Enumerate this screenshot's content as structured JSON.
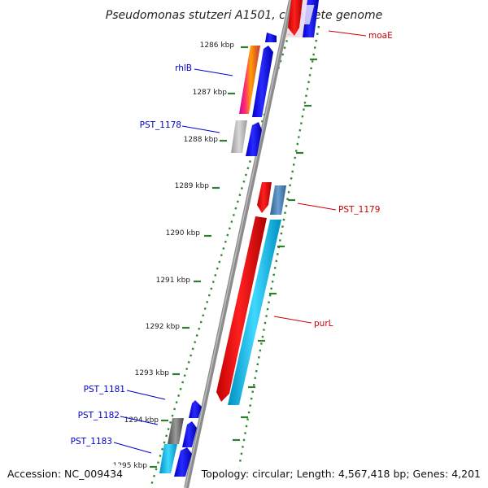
{
  "title": "Pseudomonas stutzeri A1501, complete genome",
  "footer": {
    "accession": "Accession: NC_009434",
    "topology": "Topology: circular; Length: 4,567,418 bp; Genes: 4,201"
  },
  "ticks": [
    "1286 kbp",
    "1287 kbp",
    "1288 kbp",
    "1289 kbp",
    "1290 kbp",
    "1291 kbp",
    "1292 kbp",
    "1293 kbp",
    "1294 kbp",
    "1295 kbp"
  ],
  "genes": {
    "moaE": "moaE",
    "rhlB": "rhlB",
    "pst1178": "PST_1178",
    "pst1179": "PST_1179",
    "purL": "purL",
    "pst1181": "PST_1181",
    "pst1182": "PST_1182",
    "pst1183": "PST_1183"
  },
  "colors": {
    "backbone": "#8c8c8c",
    "dots": "#2e8b2e",
    "tickmark": "#2e7d2e",
    "blue_label": "#0000cc",
    "red_label": "#cc0000",
    "gene_blue": "#0000ee",
    "gene_red": "#ee0000",
    "gene_cyan": "#1ec8f0",
    "gene_steel": "#4a7fb0",
    "gene_grey": "#8a8a8a"
  }
}
